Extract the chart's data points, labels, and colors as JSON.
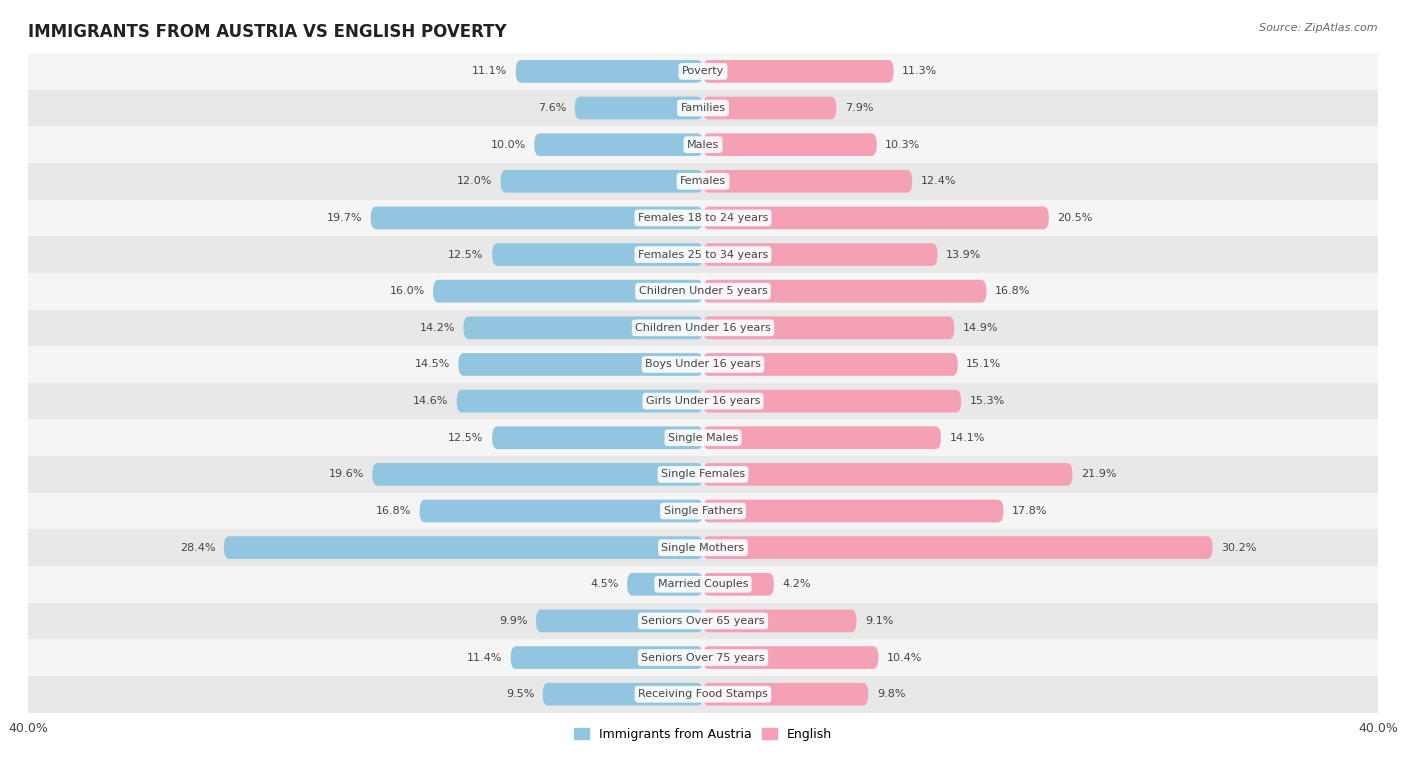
{
  "title": "IMMIGRANTS FROM AUSTRIA VS ENGLISH POVERTY",
  "source": "Source: ZipAtlas.com",
  "categories": [
    "Poverty",
    "Families",
    "Males",
    "Females",
    "Females 18 to 24 years",
    "Females 25 to 34 years",
    "Children Under 5 years",
    "Children Under 16 years",
    "Boys Under 16 years",
    "Girls Under 16 years",
    "Single Males",
    "Single Females",
    "Single Fathers",
    "Single Mothers",
    "Married Couples",
    "Seniors Over 65 years",
    "Seniors Over 75 years",
    "Receiving Food Stamps"
  ],
  "austria_values": [
    11.1,
    7.6,
    10.0,
    12.0,
    19.7,
    12.5,
    16.0,
    14.2,
    14.5,
    14.6,
    12.5,
    19.6,
    16.8,
    28.4,
    4.5,
    9.9,
    11.4,
    9.5
  ],
  "english_values": [
    11.3,
    7.9,
    10.3,
    12.4,
    20.5,
    13.9,
    16.8,
    14.9,
    15.1,
    15.3,
    14.1,
    21.9,
    17.8,
    30.2,
    4.2,
    9.1,
    10.4,
    9.8
  ],
  "austria_color": "#92c5e0",
  "english_color": "#f4a0b5",
  "background_color": "#ffffff",
  "row_color_light": "#f5f5f5",
  "row_color_dark": "#e8e8e8",
  "xlim": 40.0,
  "bar_height": 0.62,
  "legend_austria": "Immigrants from Austria",
  "legend_english": "English",
  "title_fontsize": 12,
  "label_fontsize": 8,
  "value_fontsize": 8,
  "axis_label_fontsize": 9
}
